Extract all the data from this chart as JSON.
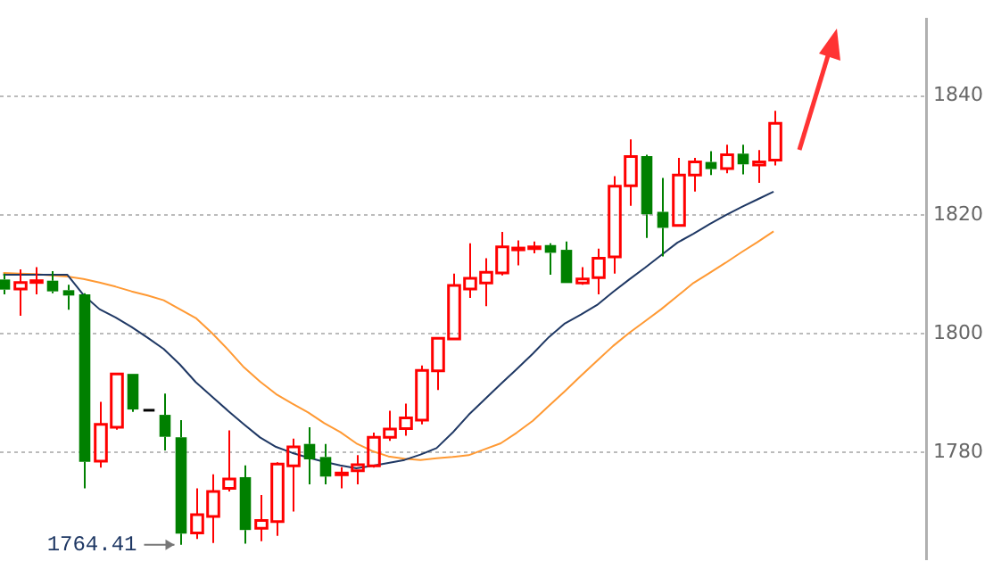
{
  "chart_data": {
    "type": "candlestick",
    "categories": [
      null,
      null,
      null,
      null,
      null,
      null,
      null,
      null,
      null,
      null,
      null,
      null,
      null,
      null,
      null,
      null,
      null,
      null,
      null,
      null,
      null,
      null,
      null,
      null,
      null,
      null,
      null,
      null,
      null,
      null,
      null,
      null,
      null,
      null,
      null,
      null,
      null,
      null,
      null,
      null,
      null,
      null,
      null,
      null,
      null,
      null,
      null,
      null,
      null
    ],
    "ohlc": [
      [
        1809.1,
        1810.1,
        1806.6,
        1807.4
      ],
      [
        1807.5,
        1810.8,
        1803.0,
        1808.6
      ],
      [
        1808.7,
        1811.2,
        1806.6,
        1808.9
      ],
      [
        1808.9,
        1810.5,
        1806.8,
        1807.1
      ],
      [
        1807.3,
        1808.2,
        1804.0,
        1806.4
      ],
      [
        1806.6,
        1806.8,
        1773.9,
        1778.4
      ],
      [
        1778.5,
        1788.5,
        1777.4,
        1784.7
      ],
      [
        1784.2,
        1793.2,
        1783.8,
        1793.2
      ],
      [
        1793.2,
        1793.2,
        1786.8,
        1787.2
      ],
      [
        1787.3,
        1787.3,
        1787.1,
        1787.1
      ],
      [
        1786.3,
        1789.9,
        1780.3,
        1782.6
      ],
      [
        1782.5,
        1785.4,
        1764.41,
        1766.3
      ],
      [
        1766.4,
        1773.9,
        1765.4,
        1769.5
      ],
      [
        1769.2,
        1776.3,
        1764.7,
        1773.4
      ],
      [
        1773.9,
        1783.7,
        1773.4,
        1775.5
      ],
      [
        1775.8,
        1777.8,
        1764.6,
        1766.9
      ],
      [
        1767.2,
        1772.8,
        1765.0,
        1768.5
      ],
      [
        1768.3,
        1778.3,
        1765.9,
        1778.0
      ],
      [
        1777.7,
        1782.3,
        1770.0,
        1780.9
      ],
      [
        1781.4,
        1784.2,
        1774.6,
        1778.8
      ],
      [
        1779.2,
        1781.4,
        1774.6,
        1775.9
      ],
      [
        1776.3,
        1777.5,
        1773.9,
        1776.5
      ],
      [
        1776.9,
        1779.5,
        1774.6,
        1777.9
      ],
      [
        1777.7,
        1783.3,
        1777.4,
        1782.5
      ],
      [
        1782.5,
        1787.0,
        1781.9,
        1783.9
      ],
      [
        1784.0,
        1788.2,
        1782.8,
        1785.8
      ],
      [
        1785.4,
        1794.6,
        1784.7,
        1793.8
      ],
      [
        1793.7,
        1799.2,
        1790.5,
        1799.2
      ],
      [
        1799.1,
        1810.1,
        1799.1,
        1808.1
      ],
      [
        1807.5,
        1815.2,
        1806.0,
        1809.3
      ],
      [
        1808.5,
        1812.7,
        1804.6,
        1810.3
      ],
      [
        1810.2,
        1817.1,
        1809.8,
        1814.6
      ],
      [
        1814.2,
        1815.7,
        1811.5,
        1814.4
      ],
      [
        1814.4,
        1815.5,
        1813.5,
        1814.6
      ],
      [
        1814.9,
        1815.2,
        1809.9,
        1813.6
      ],
      [
        1814.1,
        1815.5,
        1808.5,
        1808.5
      ],
      [
        1808.5,
        1811.2,
        1808.2,
        1809.2
      ],
      [
        1809.4,
        1814.3,
        1806.6,
        1812.7
      ],
      [
        1812.9,
        1826.5,
        1810.1,
        1824.8
      ],
      [
        1824.9,
        1832.7,
        1821.5,
        1829.8
      ],
      [
        1829.9,
        1830.1,
        1816.1,
        1820.1
      ],
      [
        1820.5,
        1826.2,
        1813.0,
        1817.8
      ],
      [
        1818.2,
        1829.6,
        1818.2,
        1826.7
      ],
      [
        1826.7,
        1829.6,
        1823.9,
        1828.9
      ],
      [
        1828.9,
        1830.7,
        1826.7,
        1827.7
      ],
      [
        1827.8,
        1831.8,
        1827.0,
        1830.1
      ],
      [
        1830.3,
        1831.8,
        1826.8,
        1828.5
      ],
      [
        1828.4,
        1830.9,
        1825.4,
        1828.9
      ],
      [
        1829.2,
        1837.5,
        1828.3,
        1835.4
      ]
    ],
    "colors": [
      "#008000",
      "#ff0000",
      "#ff0000",
      "#008000",
      "#008000",
      "#008000",
      "#ff0000",
      "#ff0000",
      "#008000",
      "#000000",
      "#008000",
      "#008000",
      "#ff0000",
      "#ff0000",
      "#ff0000",
      "#008000",
      "#ff0000",
      "#ff0000",
      "#ff0000",
      "#008000",
      "#008000",
      "#ff0000",
      "#ff0000",
      "#ff0000",
      "#ff0000",
      "#ff0000",
      "#ff0000",
      "#ff0000",
      "#ff0000",
      "#ff0000",
      "#ff0000",
      "#ff0000",
      "#ff0000",
      "#ff0000",
      "#008000",
      "#008000",
      "#ff0000",
      "#ff0000",
      "#ff0000",
      "#ff0000",
      "#008000",
      "#008000",
      "#ff0000",
      "#ff0000",
      "#008000",
      "#ff0000",
      "#008000",
      "#ff0000",
      "#ff0000"
    ],
    "series": [
      {
        "type": "line",
        "color": "#1f3864",
        "values": [
          1809.9,
          1809.9,
          1809.9,
          1809.9,
          1809.9,
          1806.5,
          1804.1,
          1802.7,
          1801.1,
          1799.3,
          1797.4,
          1794.8,
          1791.8,
          1789.4,
          1787.0,
          1784.7,
          1782.5,
          1780.9,
          1779.9,
          1779.1,
          1778.4,
          1777.8,
          1777.3,
          1777.7,
          1778.2,
          1778.7,
          1779.6,
          1780.7,
          1783.3,
          1786.3,
          1788.9,
          1791.5,
          1794.0,
          1796.6,
          1799.4,
          1801.7,
          1803.2,
          1804.8,
          1807.0,
          1809.1,
          1811.1,
          1813.2,
          1815.3,
          1816.8,
          1818.4,
          1819.9,
          1821.3,
          1822.6,
          1823.9
        ]
      },
      {
        "type": "line",
        "color": "#ff9933",
        "values": [
          1810.2,
          1810.1,
          1810.0,
          1809.8,
          1809.6,
          1809.2,
          1808.6,
          1807.9,
          1807.1,
          1806.4,
          1805.6,
          1804.1,
          1802.6,
          1800.1,
          1797.3,
          1794.3,
          1791.9,
          1789.8,
          1788.2,
          1786.7,
          1784.9,
          1783.4,
          1781.5,
          1780.2,
          1779.3,
          1778.9,
          1778.7,
          1779.0,
          1779.2,
          1779.5,
          1780.5,
          1781.5,
          1783.3,
          1785.3,
          1787.8,
          1790.3,
          1792.9,
          1795.4,
          1797.9,
          1800.1,
          1802.1,
          1804.1,
          1806.3,
          1808.5,
          1810.2,
          1811.9,
          1813.7,
          1815.4,
          1817.2
        ]
      }
    ],
    "ylim": [
      1762,
      1853
    ],
    "yticks": [
      1780,
      1800,
      1820,
      1840
    ],
    "grid": "y",
    "legend": false,
    "tick_labels": "y",
    "marker": "none",
    "annotations": [
      "1764.41"
    ]
  }
}
